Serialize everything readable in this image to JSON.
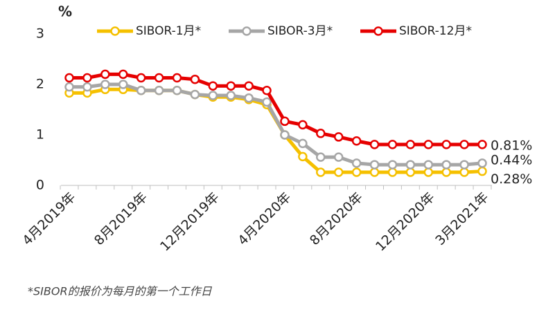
{
  "chart_data": {
    "type": "line",
    "y_label": "%",
    "footnote": "*SIBOR的报价为每月的第一个工作日",
    "categories": [
      "4月2019年",
      null,
      null,
      null,
      "8月2019年",
      null,
      null,
      null,
      "12月2019年",
      null,
      null,
      null,
      "4月2020年",
      null,
      null,
      null,
      "8月2020年",
      null,
      null,
      null,
      "12月2020年",
      null,
      null,
      "3月2021年"
    ],
    "ylim": [
      0,
      3
    ],
    "yticks": [
      0,
      1,
      2,
      3
    ],
    "legend": "top",
    "series": [
      {
        "name": "SIBOR-1月*",
        "color": "#f5c000",
        "values": [
          1.83,
          1.83,
          1.9,
          1.9,
          1.88,
          1.88,
          1.88,
          1.8,
          1.75,
          1.75,
          1.7,
          1.6,
          1.0,
          0.57,
          0.26,
          0.26,
          0.26,
          0.26,
          0.26,
          0.26,
          0.26,
          0.26,
          0.26,
          0.28
        ],
        "value_labels": [
          null,
          null,
          null,
          null,
          null,
          null,
          null,
          null,
          null,
          null,
          null,
          null,
          null,
          null,
          null,
          null,
          null,
          null,
          null,
          null,
          null,
          null,
          null,
          "0.28%"
        ]
      },
      {
        "name": "SIBOR-3月*",
        "color": "#a6a6a6",
        "values": [
          1.95,
          1.95,
          2.0,
          2.0,
          1.88,
          1.88,
          1.88,
          1.8,
          1.78,
          1.78,
          1.73,
          1.65,
          1.0,
          0.83,
          0.56,
          0.56,
          0.44,
          0.41,
          0.41,
          0.41,
          0.41,
          0.41,
          0.41,
          0.44
        ],
        "value_labels": [
          null,
          null,
          null,
          null,
          null,
          null,
          null,
          null,
          null,
          null,
          null,
          null,
          null,
          null,
          null,
          null,
          null,
          null,
          null,
          null,
          null,
          null,
          null,
          "0.44%"
        ]
      },
      {
        "name": "SIBOR-12月*",
        "color": "#e60000",
        "values": [
          2.13,
          2.13,
          2.2,
          2.2,
          2.13,
          2.13,
          2.13,
          2.1,
          1.97,
          1.97,
          1.97,
          1.88,
          1.27,
          1.2,
          1.03,
          0.96,
          0.88,
          0.81,
          0.81,
          0.81,
          0.81,
          0.81,
          0.81,
          0.81
        ],
        "value_labels": [
          null,
          null,
          null,
          null,
          null,
          null,
          null,
          null,
          null,
          null,
          null,
          null,
          null,
          null,
          null,
          null,
          null,
          null,
          null,
          null,
          null,
          null,
          null,
          "0.81%"
        ]
      }
    ]
  }
}
